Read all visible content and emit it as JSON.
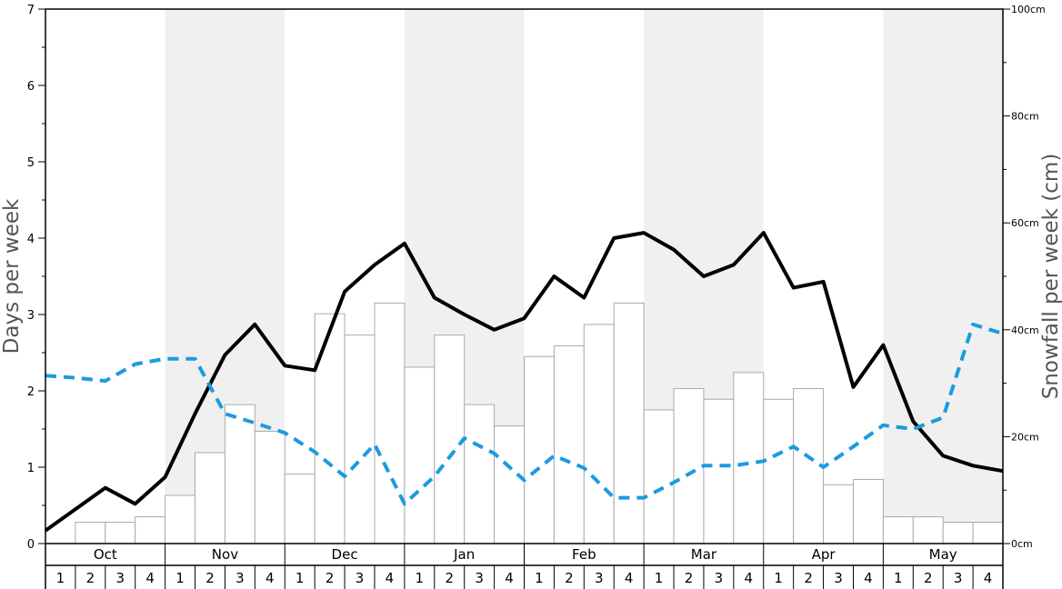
{
  "chart_data": {
    "type": "bar",
    "left_axis": {
      "label": "Days per week",
      "ylim": [
        0,
        7
      ],
      "ticks": [
        "0",
        "1",
        "2",
        "3",
        "4",
        "5",
        "6",
        "7"
      ]
    },
    "right_axis": {
      "label": "Snowfall per week (cm)",
      "ylim": [
        0,
        100
      ],
      "ticks": [
        "0cm",
        "20cm",
        "40cm",
        "60cm",
        "80cm",
        "100cm"
      ]
    },
    "months": [
      "Oct",
      "Nov",
      "Dec",
      "Jan",
      "Feb",
      "Mar",
      "Apr",
      "May"
    ],
    "weeks": [
      "1",
      "2",
      "3",
      "4"
    ],
    "shaded_months": [
      "Nov",
      "Jan",
      "Mar",
      "May"
    ],
    "series": [
      {
        "type": "bar",
        "axis": "right",
        "color": "#ffffff",
        "edge_color": "#aaaaaa",
        "values": [
          0,
          4,
          4,
          5,
          9,
          17,
          26,
          21,
          13,
          43,
          39,
          45,
          33,
          39,
          26,
          22,
          35,
          37,
          41,
          45,
          25,
          29,
          27,
          32,
          27,
          29,
          11,
          12,
          5,
          5,
          4,
          4
        ]
      },
      {
        "type": "line",
        "axis": "left",
        "color": "#000000",
        "style": "solid",
        "values": [
          0.17,
          0.45,
          0.73,
          0.52,
          0.87,
          1.7,
          2.47,
          2.87,
          2.33,
          2.27,
          3.3,
          3.65,
          3.93,
          3.22,
          3.0,
          2.8,
          2.95,
          3.5,
          3.22,
          4.0,
          4.07,
          3.85,
          3.5,
          3.65,
          4.07,
          3.35,
          3.43,
          2.05,
          2.6,
          1.6,
          1.15,
          1.02,
          0.95
        ]
      },
      {
        "type": "line",
        "axis": "left",
        "color": "#1b9be0",
        "style": "dashed",
        "values": [
          2.2,
          2.17,
          2.13,
          2.35,
          2.42,
          2.42,
          1.7,
          1.58,
          1.45,
          1.2,
          0.88,
          1.3,
          0.52,
          0.88,
          1.38,
          1.18,
          0.83,
          1.15,
          0.99,
          0.6,
          0.6,
          0.8,
          1.02,
          1.02,
          1.08,
          1.27,
          1.0,
          1.27,
          1.55,
          1.5,
          1.65,
          2.87,
          2.75
        ]
      }
    ]
  }
}
